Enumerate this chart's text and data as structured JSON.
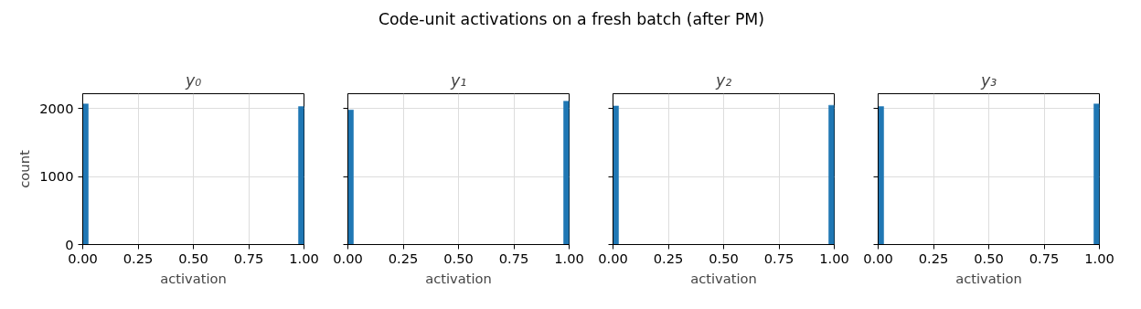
{
  "chart_data": [
    {
      "type": "histogram",
      "title": "y₀",
      "xlabel": "activation",
      "ylabel": "count",
      "annotations": [
        "Code-unit activations on a fresh batch (after PM)"
      ],
      "color": "#1f77b4",
      "bins": [
        0,
        0.025,
        0.05,
        0.075,
        0.1,
        0.125,
        0.15,
        0.175,
        0.2,
        0.225,
        0.25,
        0.275,
        0.3,
        0.325,
        0.35,
        0.375,
        0.4,
        0.425,
        0.45,
        0.475,
        0.5,
        0.525,
        0.55,
        0.575,
        0.6,
        0.625,
        0.65,
        0.675,
        0.7,
        0.725,
        0.75,
        0.775,
        0.8,
        0.825,
        0.85,
        0.875,
        0.9,
        0.925,
        0.95,
        0.975,
        1
      ],
      "values": [
        2070,
        0,
        0,
        0,
        0,
        0,
        0,
        0,
        0,
        0,
        0,
        0,
        0,
        0,
        0,
        0,
        0,
        0,
        0,
        0,
        0,
        0,
        0,
        0,
        0,
        0,
        0,
        0,
        0,
        0,
        0,
        0,
        0,
        0,
        0,
        0,
        0,
        0,
        0,
        2030
      ],
      "xlim": [
        0,
        1
      ],
      "ylim": [
        0,
        2220
      ],
      "xticks": [
        {
          "value": 0,
          "label": "0.00"
        },
        {
          "value": 0.25,
          "label": "0.25"
        },
        {
          "value": 0.5,
          "label": "0.50"
        },
        {
          "value": 0.75,
          "label": "0.75"
        },
        {
          "value": 1,
          "label": "1.00"
        }
      ],
      "yticks": [
        0,
        1000,
        2000
      ],
      "grid": true
    },
    {
      "type": "histogram",
      "title": "y₁",
      "xlabel": "activation",
      "color": "#1f77b4",
      "bins": [
        0,
        0.025,
        0.05,
        0.075,
        0.1,
        0.125,
        0.15,
        0.175,
        0.2,
        0.225,
        0.25,
        0.275,
        0.3,
        0.325,
        0.35,
        0.375,
        0.4,
        0.425,
        0.45,
        0.475,
        0.5,
        0.525,
        0.55,
        0.575,
        0.6,
        0.625,
        0.65,
        0.675,
        0.7,
        0.725,
        0.75,
        0.775,
        0.8,
        0.825,
        0.85,
        0.875,
        0.9,
        0.925,
        0.95,
        0.975,
        1
      ],
      "values": [
        1980,
        0,
        0,
        0,
        0,
        0,
        0,
        0,
        0,
        0,
        0,
        0,
        0,
        0,
        0,
        0,
        0,
        0,
        0,
        0,
        0,
        0,
        0,
        0,
        0,
        0,
        0,
        0,
        0,
        0,
        0,
        0,
        0,
        0,
        0,
        0,
        0,
        0,
        0,
        2110
      ],
      "xlim": [
        0,
        1
      ],
      "ylim": [
        0,
        2220
      ],
      "xticks": [
        {
          "value": 0,
          "label": "0.00"
        },
        {
          "value": 0.25,
          "label": "0.25"
        },
        {
          "value": 0.5,
          "label": "0.50"
        },
        {
          "value": 0.75,
          "label": "0.75"
        },
        {
          "value": 1,
          "label": "1.00"
        }
      ],
      "yticks": [
        0,
        1000,
        2000
      ],
      "grid": true,
      "tick_labels": "x"
    },
    {
      "type": "histogram",
      "title": "y₂",
      "xlabel": "activation",
      "color": "#1f77b4",
      "bins": [
        0,
        0.025,
        0.05,
        0.075,
        0.1,
        0.125,
        0.15,
        0.175,
        0.2,
        0.225,
        0.25,
        0.275,
        0.3,
        0.325,
        0.35,
        0.375,
        0.4,
        0.425,
        0.45,
        0.475,
        0.5,
        0.525,
        0.55,
        0.575,
        0.6,
        0.625,
        0.65,
        0.675,
        0.7,
        0.725,
        0.75,
        0.775,
        0.8,
        0.825,
        0.85,
        0.875,
        0.9,
        0.925,
        0.95,
        0.975,
        1
      ],
      "values": [
        2040,
        0,
        0,
        0,
        0,
        0,
        0,
        0,
        0,
        0,
        0,
        0,
        0,
        0,
        0,
        0,
        0,
        0,
        0,
        0,
        0,
        0,
        0,
        0,
        0,
        0,
        0,
        0,
        0,
        0,
        0,
        0,
        0,
        0,
        0,
        0,
        0,
        0,
        0,
        2050
      ],
      "xlim": [
        0,
        1
      ],
      "ylim": [
        0,
        2220
      ],
      "xticks": [
        {
          "value": 0,
          "label": "0.00"
        },
        {
          "value": 0.25,
          "label": "0.25"
        },
        {
          "value": 0.5,
          "label": "0.50"
        },
        {
          "value": 0.75,
          "label": "0.75"
        },
        {
          "value": 1,
          "label": "1.00"
        }
      ],
      "yticks": [
        0,
        1000,
        2000
      ],
      "grid": true,
      "tick_labels": "x"
    },
    {
      "type": "histogram",
      "title": "y₃",
      "xlabel": "activation",
      "color": "#1f77b4",
      "bins": [
        0,
        0.025,
        0.05,
        0.075,
        0.1,
        0.125,
        0.15,
        0.175,
        0.2,
        0.225,
        0.25,
        0.275,
        0.3,
        0.325,
        0.35,
        0.375,
        0.4,
        0.425,
        0.45,
        0.475,
        0.5,
        0.525,
        0.55,
        0.575,
        0.6,
        0.625,
        0.65,
        0.675,
        0.7,
        0.725,
        0.75,
        0.775,
        0.8,
        0.825,
        0.85,
        0.875,
        0.9,
        0.925,
        0.95,
        0.975,
        1
      ],
      "values": [
        2030,
        0,
        0,
        0,
        0,
        0,
        0,
        0,
        0,
        0,
        0,
        0,
        0,
        0,
        0,
        0,
        0,
        0,
        0,
        0,
        0,
        0,
        0,
        0,
        0,
        0,
        0,
        0,
        0,
        0,
        0,
        0,
        0,
        0,
        0,
        0,
        0,
        0,
        0,
        2070
      ],
      "xlim": [
        0,
        1
      ],
      "ylim": [
        0,
        2220
      ],
      "xticks": [
        {
          "value": 0,
          "label": "0.00"
        },
        {
          "value": 0.25,
          "label": "0.25"
        },
        {
          "value": 0.5,
          "label": "0.50"
        },
        {
          "value": 0.75,
          "label": "0.75"
        },
        {
          "value": 1,
          "label": "1.00"
        }
      ],
      "yticks": [
        0,
        1000,
        2000
      ],
      "grid": true,
      "tick_labels": "x"
    }
  ]
}
